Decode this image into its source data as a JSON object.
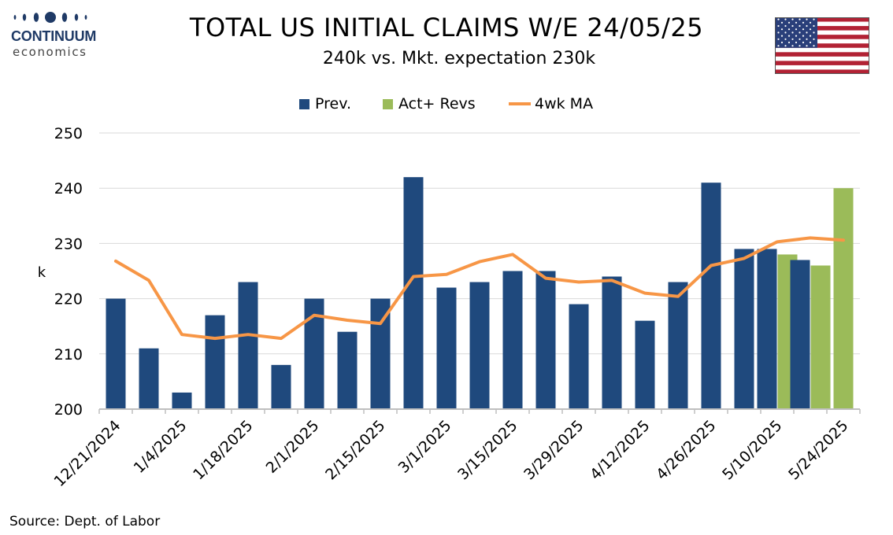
{
  "brand": {
    "name": "CONTINUUM",
    "sub": "economics",
    "color": "#1f3a66"
  },
  "header": {
    "title": "TOTAL US INITIAL CLAIMS W/E 24/05/25",
    "subtitle": "240k vs. Mkt. expectation 230k"
  },
  "flag": {
    "icon": "us-flag-icon"
  },
  "source": "Source: Dept. of Labor",
  "colors": {
    "prev": "#1f497d",
    "actual": "#9bbb59",
    "ma": "#f79646",
    "grid": "#d9d9d9",
    "axis": "#bfbfbf"
  },
  "chart_data": {
    "type": "bar",
    "legend": [
      "Prev.",
      "Act+ Revs",
      "4wk MA"
    ],
    "legend_position": "top",
    "ylabel": "k",
    "ylim": [
      200,
      250
    ],
    "yticks": [
      200,
      210,
      220,
      230,
      240,
      250
    ],
    "grid": true,
    "x": [
      "12/21/2024",
      "12/28/2024",
      "1/4/2025",
      "1/11/2025",
      "1/18/2025",
      "1/25/2025",
      "2/1/2025",
      "2/8/2025",
      "2/15/2025",
      "2/22/2025",
      "3/1/2025",
      "3/8/2025",
      "3/15/2025",
      "3/22/2025",
      "3/29/2025",
      "4/5/2025",
      "4/12/2025",
      "4/19/2025",
      "4/26/2025",
      "5/3/2025",
      "5/10/2025",
      "5/17/2025",
      "5/24/2025"
    ],
    "x_tick_labels": [
      "12/21/2024",
      "1/4/2025",
      "1/18/2025",
      "2/1/2025",
      "2/15/2025",
      "3/1/2025",
      "3/15/2025",
      "3/29/2025",
      "4/12/2025",
      "4/26/2025",
      "5/10/2025",
      "5/24/2025"
    ],
    "series": [
      {
        "name": "Prev.",
        "kind": "bar",
        "values": [
          220,
          211,
          203,
          217,
          223,
          208,
          220,
          214,
          220,
          242,
          222,
          223,
          225,
          225,
          219,
          224,
          216,
          223,
          241,
          229,
          229,
          227,
          null
        ]
      },
      {
        "name": "Act+ Revs",
        "kind": "bar",
        "values": [
          null,
          null,
          null,
          null,
          null,
          null,
          null,
          null,
          null,
          null,
          null,
          null,
          null,
          null,
          null,
          null,
          null,
          null,
          null,
          null,
          228,
          226,
          240
        ]
      },
      {
        "name": "4wk MA",
        "kind": "line",
        "values": [
          226.8,
          223.3,
          213.5,
          212.8,
          213.5,
          212.8,
          217.0,
          216.1,
          215.5,
          224.0,
          224.4,
          226.7,
          228.0,
          223.7,
          223.0,
          223.3,
          221.0,
          220.4,
          226.0,
          227.3,
          230.3,
          231.0,
          230.6
        ]
      }
    ]
  }
}
